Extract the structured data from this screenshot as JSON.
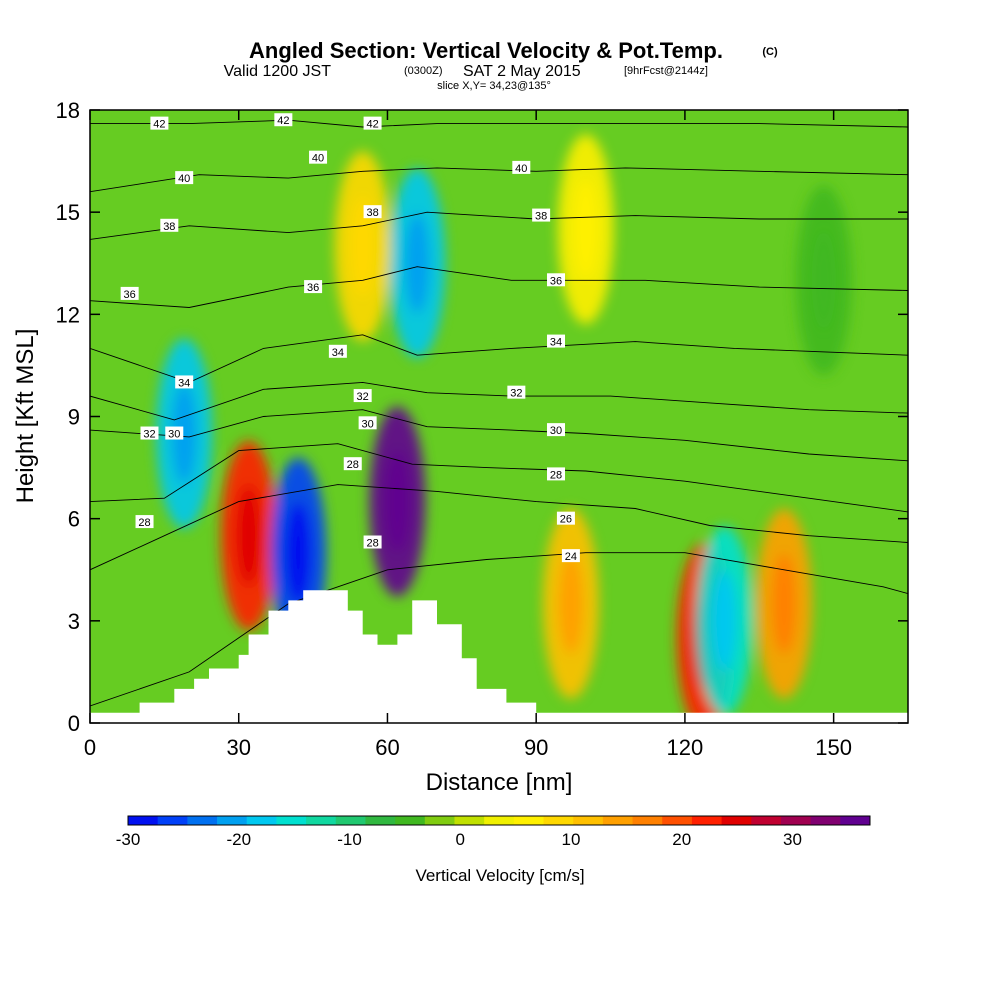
{
  "title": {
    "main": "Angled Section: Vertical Velocity & Pot.Temp.",
    "copyright": "(C)",
    "valid_prefix": "Valid 1200 JST",
    "valid_utc": "(0300Z)",
    "valid_date": "SAT 2 May 2015",
    "forecast": "[9hrFcst@2144z]",
    "slice": "slice X,Y= 34,23@135°"
  },
  "colors": {
    "background_field": "#66cc22",
    "terrain": "#ffffff",
    "contour_line": "#000000",
    "colorbar": [
      "#0010f0",
      "#0040f8",
      "#0070f0",
      "#00a0f0",
      "#00c8f0",
      "#00e0d0",
      "#10d8a0",
      "#20c870",
      "#30b840",
      "#40b820",
      "#80cc10",
      "#c0e000",
      "#f0f000",
      "#fff000",
      "#ffd800",
      "#ffc000",
      "#ffa000",
      "#ff8000",
      "#ff5000",
      "#ff2000",
      "#e00000",
      "#c00030",
      "#a00050",
      "#800070",
      "#600090"
    ]
  },
  "chart_data": {
    "type": "heatmap",
    "xlabel": "Distance [nm]",
    "ylabel": "Height [Kft MSL]",
    "xlim": [
      0,
      165
    ],
    "ylim": [
      0,
      18
    ],
    "xticks": [
      0,
      30,
      60,
      90,
      120,
      150
    ],
    "yticks": [
      0,
      3,
      6,
      9,
      12,
      15,
      18
    ],
    "colorbar": {
      "title": "Vertical Velocity [cm/s]",
      "range": [
        -30,
        37
      ],
      "ticks": [
        -30,
        -20,
        -10,
        0,
        10,
        20,
        30
      ]
    },
    "terrain_profile": [
      {
        "x": 0,
        "y": 0.3
      },
      {
        "x": 10,
        "y": 0.6
      },
      {
        "x": 17,
        "y": 1.0
      },
      {
        "x": 21,
        "y": 1.3
      },
      {
        "x": 24,
        "y": 1.6
      },
      {
        "x": 30,
        "y": 2.0
      },
      {
        "x": 32,
        "y": 2.6
      },
      {
        "x": 36,
        "y": 3.3
      },
      {
        "x": 40,
        "y": 3.6
      },
      {
        "x": 43,
        "y": 3.9
      },
      {
        "x": 50,
        "y": 3.9
      },
      {
        "x": 52,
        "y": 3.3
      },
      {
        "x": 55,
        "y": 2.6
      },
      {
        "x": 58,
        "y": 2.3
      },
      {
        "x": 62,
        "y": 2.6
      },
      {
        "x": 65,
        "y": 3.6
      },
      {
        "x": 70,
        "y": 2.9
      },
      {
        "x": 75,
        "y": 1.9
      },
      {
        "x": 78,
        "y": 1.0
      },
      {
        "x": 84,
        "y": 0.6
      },
      {
        "x": 90,
        "y": 0.3
      },
      {
        "x": 165,
        "y": 0.3
      }
    ],
    "velocity_cells": [
      {
        "x": 32,
        "y": 5.5,
        "value": 22
      },
      {
        "x": 42,
        "y": 5.0,
        "value": -28
      },
      {
        "x": 62,
        "y": 6.5,
        "value": 36
      },
      {
        "x": 66,
        "y": 13.5,
        "value": -20
      },
      {
        "x": 19,
        "y": 8.5,
        "value": -18
      },
      {
        "x": 97,
        "y": 3.5,
        "value": 12
      },
      {
        "x": 124,
        "y": 2.5,
        "value": 24
      },
      {
        "x": 128,
        "y": 3.0,
        "value": -16
      },
      {
        "x": 140,
        "y": 3.5,
        "value": 15
      },
      {
        "x": 55,
        "y": 14.0,
        "value": 8
      },
      {
        "x": 100,
        "y": 14.5,
        "value": 6
      },
      {
        "x": 148,
        "y": 13.0,
        "value": -4
      }
    ],
    "isentropes": [
      {
        "theta": 24,
        "points": [
          [
            0,
            0.5
          ],
          [
            20,
            1.5
          ],
          [
            40,
            3.5
          ],
          [
            60,
            4.5
          ],
          [
            80,
            4.8
          ],
          [
            100,
            5.0
          ],
          [
            120,
            5.0
          ],
          [
            140,
            4.5
          ],
          [
            160,
            4.0
          ],
          [
            165,
            3.8
          ]
        ]
      },
      {
        "theta": 26,
        "points": [
          [
            0,
            4.5
          ],
          [
            15,
            5.5
          ],
          [
            30,
            6.5
          ],
          [
            50,
            7.0
          ],
          [
            70,
            6.8
          ],
          [
            90,
            6.5
          ],
          [
            110,
            6.3
          ],
          [
            125,
            5.8
          ],
          [
            145,
            5.5
          ],
          [
            165,
            5.3
          ]
        ]
      },
      {
        "theta": 28,
        "points": [
          [
            0,
            6.5
          ],
          [
            15,
            6.6
          ],
          [
            30,
            8.0
          ],
          [
            50,
            8.2
          ],
          [
            65,
            7.6
          ],
          [
            80,
            7.5
          ],
          [
            100,
            7.4
          ],
          [
            120,
            7.1
          ],
          [
            145,
            6.6
          ],
          [
            165,
            6.2
          ]
        ]
      },
      {
        "theta": 30,
        "points": [
          [
            0,
            8.6
          ],
          [
            20,
            8.4
          ],
          [
            35,
            9.0
          ],
          [
            55,
            9.2
          ],
          [
            68,
            8.7
          ],
          [
            85,
            8.6
          ],
          [
            100,
            8.5
          ],
          [
            120,
            8.3
          ],
          [
            145,
            7.9
          ],
          [
            165,
            7.7
          ]
        ]
      },
      {
        "theta": 32,
        "points": [
          [
            0,
            9.6
          ],
          [
            17,
            8.9
          ],
          [
            35,
            9.8
          ],
          [
            55,
            10.0
          ],
          [
            68,
            9.7
          ],
          [
            85,
            9.6
          ],
          [
            105,
            9.6
          ],
          [
            125,
            9.4
          ],
          [
            145,
            9.2
          ],
          [
            165,
            9.1
          ]
        ]
      },
      {
        "theta": 34,
        "points": [
          [
            0,
            11.0
          ],
          [
            20,
            10.0
          ],
          [
            35,
            11.0
          ],
          [
            55,
            11.4
          ],
          [
            66,
            10.8
          ],
          [
            85,
            11.0
          ],
          [
            110,
            11.2
          ],
          [
            130,
            11.0
          ],
          [
            165,
            10.8
          ]
        ]
      },
      {
        "theta": 36,
        "points": [
          [
            0,
            12.4
          ],
          [
            20,
            12.2
          ],
          [
            40,
            12.8
          ],
          [
            55,
            13.0
          ],
          [
            66,
            13.4
          ],
          [
            85,
            13.0
          ],
          [
            112,
            13.0
          ],
          [
            135,
            12.8
          ],
          [
            165,
            12.7
          ]
        ]
      },
      {
        "theta": 38,
        "points": [
          [
            0,
            14.2
          ],
          [
            20,
            14.6
          ],
          [
            40,
            14.4
          ],
          [
            55,
            14.6
          ],
          [
            68,
            15.0
          ],
          [
            90,
            14.8
          ],
          [
            110,
            14.9
          ],
          [
            135,
            14.8
          ],
          [
            165,
            14.8
          ]
        ]
      },
      {
        "theta": 40,
        "points": [
          [
            0,
            15.6
          ],
          [
            22,
            16.1
          ],
          [
            40,
            16.0
          ],
          [
            55,
            16.2
          ],
          [
            70,
            16.3
          ],
          [
            90,
            16.2
          ],
          [
            108,
            16.3
          ],
          [
            135,
            16.2
          ],
          [
            165,
            16.1
          ]
        ]
      },
      {
        "theta": 42,
        "points": [
          [
            0,
            17.6
          ],
          [
            20,
            17.6
          ],
          [
            40,
            17.7
          ],
          [
            55,
            17.5
          ],
          [
            70,
            17.6
          ],
          [
            90,
            17.6
          ],
          [
            110,
            17.6
          ],
          [
            135,
            17.6
          ],
          [
            165,
            17.5
          ]
        ]
      }
    ],
    "contour_labels": [
      {
        "text": "42",
        "x": 14,
        "y": 17.6
      },
      {
        "text": "42",
        "x": 39,
        "y": 17.7
      },
      {
        "text": "42",
        "x": 57,
        "y": 17.6
      },
      {
        "text": "40",
        "x": 19,
        "y": 16.0
      },
      {
        "text": "40",
        "x": 46,
        "y": 16.6
      },
      {
        "text": "40",
        "x": 87,
        "y": 16.3
      },
      {
        "text": "38",
        "x": 16,
        "y": 14.6
      },
      {
        "text": "38",
        "x": 57,
        "y": 15.0
      },
      {
        "text": "38",
        "x": 91,
        "y": 14.9
      },
      {
        "text": "36",
        "x": 8,
        "y": 12.6
      },
      {
        "text": "36",
        "x": 45,
        "y": 12.8
      },
      {
        "text": "36",
        "x": 94,
        "y": 13.0
      },
      {
        "text": "34",
        "x": 19,
        "y": 10.0
      },
      {
        "text": "34",
        "x": 50,
        "y": 10.9
      },
      {
        "text": "34",
        "x": 94,
        "y": 11.2
      },
      {
        "text": "32",
        "x": 12,
        "y": 8.5
      },
      {
        "text": "32",
        "x": 55,
        "y": 9.6
      },
      {
        "text": "32",
        "x": 86,
        "y": 9.7
      },
      {
        "text": "30",
        "x": 17,
        "y": 8.5
      },
      {
        "text": "30",
        "x": 56,
        "y": 8.8
      },
      {
        "text": "30",
        "x": 94,
        "y": 8.6
      },
      {
        "text": "28",
        "x": 11,
        "y": 5.9
      },
      {
        "text": "28",
        "x": 53,
        "y": 7.6
      },
      {
        "text": "28",
        "x": 94,
        "y": 7.3
      },
      {
        "text": "26",
        "x": 96,
        "y": 6.0
      },
      {
        "text": "28",
        "x": 57,
        "y": 5.3
      },
      {
        "text": "24",
        "x": 97,
        "y": 4.9
      }
    ]
  }
}
